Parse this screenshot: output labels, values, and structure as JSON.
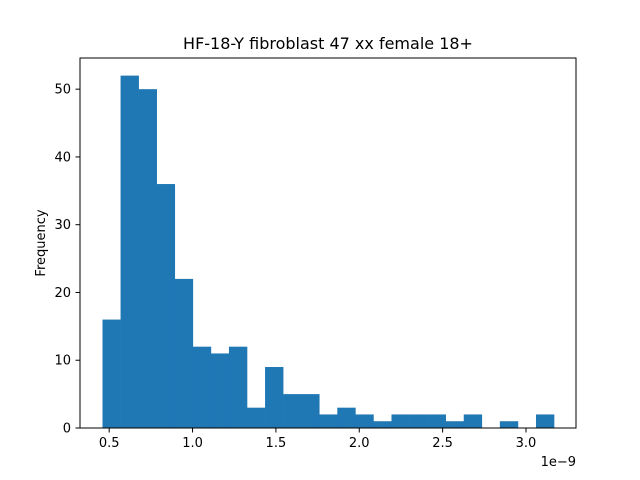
{
  "chart_data": {
    "type": "bar",
    "title": "HF-18-Y fibroblast 47 xx female 18+",
    "xlabel": "",
    "ylabel": "Frequency",
    "x_offset_text": "1e−9",
    "x_unit_multiplier": 1e-09,
    "bin_edges": [
      0.46,
      0.5683,
      0.6767,
      0.785,
      0.8933,
      1.0017,
      1.11,
      1.2183,
      1.3267,
      1.435,
      1.5433,
      1.6517,
      1.76,
      1.8683,
      1.9767,
      2.085,
      2.1933,
      2.3017,
      2.41,
      2.5183,
      2.6267,
      2.735,
      2.8433,
      2.9517,
      3.06,
      3.1683
    ],
    "values": [
      16,
      52,
      50,
      36,
      22,
      12,
      11,
      12,
      3,
      9,
      5,
      5,
      2,
      3,
      2,
      1,
      2,
      2,
      2,
      1,
      2,
      0,
      1,
      0,
      2
    ],
    "xlim": [
      0.325,
      3.3
    ],
    "ylim": [
      0,
      54.6
    ],
    "x_ticks": [
      0.5,
      1.0,
      1.5,
      2.0,
      2.5,
      3.0
    ],
    "x_tick_labels": [
      "0.5",
      "1.0",
      "1.5",
      "2.0",
      "2.5",
      "3.0"
    ],
    "y_ticks": [
      0,
      10,
      20,
      30,
      40,
      50
    ],
    "y_tick_labels": [
      "0",
      "10",
      "20",
      "30",
      "40",
      "50"
    ],
    "bar_color": "#1f77b4",
    "grid": false,
    "legend": "none"
  }
}
